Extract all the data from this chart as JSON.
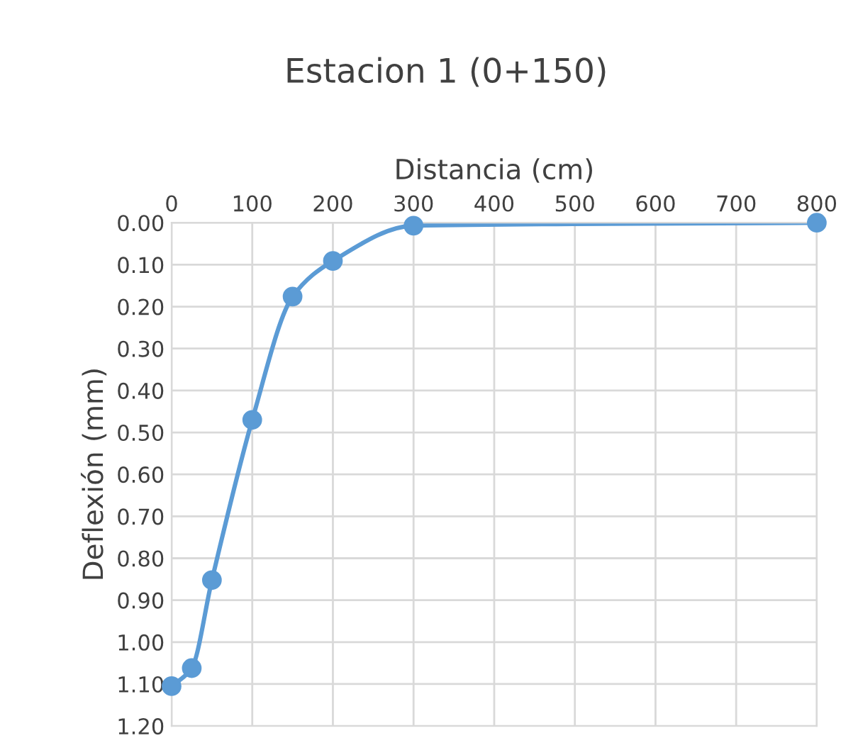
{
  "chart_data": {
    "type": "line",
    "title": "Estacion 1 (0+150)",
    "xlabel": "Distancia (cm)",
    "ylabel": "Deflexión (mm)",
    "x": [
      0,
      25,
      50,
      100,
      150,
      200,
      300,
      800
    ],
    "series": [
      {
        "color": "#5b9bd5",
        "values": [
          1.105,
          1.062,
          0.852,
          0.47,
          0.176,
          0.091,
          0.007,
          0.0
        ]
      }
    ],
    "xlim": [
      0,
      800
    ],
    "xticks": [
      0,
      100,
      200,
      300,
      400,
      500,
      600,
      700,
      800
    ],
    "ylim": [
      1.2,
      0
    ],
    "yticks": [
      {
        "value": 0,
        "label": "0.00"
      },
      {
        "value": 0.1,
        "label": "0.10"
      },
      {
        "value": 0.2,
        "label": "0.20"
      },
      {
        "value": 0.3,
        "label": "0.30"
      },
      {
        "value": 0.4,
        "label": "0.40"
      },
      {
        "value": 0.5,
        "label": "0.50"
      },
      {
        "value": 0.6,
        "label": "0.60"
      },
      {
        "value": 0.7,
        "label": "0.70"
      },
      {
        "value": 0.8,
        "label": "0.80"
      },
      {
        "value": 0.9,
        "label": "0.90"
      },
      {
        "value": 1.0,
        "label": "1.00"
      },
      {
        "value": 1.1,
        "label": "1.10"
      },
      {
        "value": 1.2,
        "label": "1.20"
      }
    ],
    "grid": true,
    "marker": "circle",
    "line_style": "solid"
  }
}
